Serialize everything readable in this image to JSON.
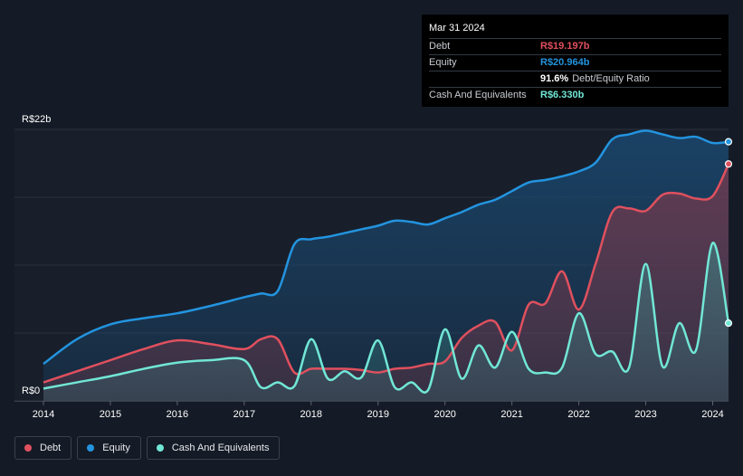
{
  "tooltip": {
    "date": "Mar 31 2024",
    "debt_label": "Debt",
    "debt_value": "R$19.197b",
    "equity_label": "Equity",
    "equity_value": "R$20.964b",
    "ratio_value": "91.6%",
    "ratio_label": "Debt/Equity Ratio",
    "cash_label": "Cash And Equivalents",
    "cash_value": "R$6.330b"
  },
  "legend": {
    "debt": "Debt",
    "equity": "Equity",
    "cash": "Cash And Equivalents"
  },
  "colors": {
    "debt": "#e0505e",
    "equity": "#2394df",
    "cash": "#71e7d6",
    "background": "#151b26"
  },
  "chart_data": {
    "type": "area",
    "title": "",
    "xlabel": "",
    "ylabel": "",
    "ylim": [
      0,
      22
    ],
    "y_axis_labels": [
      "R$22b",
      "R$0"
    ],
    "x_ticks": [
      "2014",
      "2015",
      "2016",
      "2017",
      "2018",
      "2019",
      "2020",
      "2021",
      "2022",
      "2023",
      "2024"
    ],
    "series": [
      {
        "name": "Equity",
        "x": [
          2014.0,
          2014.5,
          2015.0,
          2015.5,
          2016.0,
          2016.5,
          2017.0,
          2017.25,
          2017.5,
          2017.75,
          2018.0,
          2018.25,
          2018.5,
          2018.75,
          2019.0,
          2019.25,
          2019.5,
          2019.75,
          2020.0,
          2020.25,
          2020.5,
          2020.75,
          2021.0,
          2021.25,
          2021.5,
          2021.75,
          2022.0,
          2022.25,
          2022.5,
          2022.75,
          2023.0,
          2023.25,
          2023.5,
          2023.75,
          2024.0,
          2024.25
        ],
        "values": [
          3.0,
          5.0,
          6.2,
          6.7,
          7.1,
          7.7,
          8.4,
          8.7,
          8.9,
          12.7,
          13.1,
          13.3,
          13.6,
          13.9,
          14.2,
          14.6,
          14.5,
          14.3,
          14.8,
          15.3,
          15.9,
          16.3,
          17.0,
          17.7,
          17.9,
          18.2,
          18.6,
          19.3,
          21.2,
          21.6,
          21.9,
          21.6,
          21.3,
          21.4,
          20.9,
          21.0
        ]
      },
      {
        "name": "Debt",
        "x": [
          2014.0,
          2014.5,
          2015.0,
          2015.5,
          2016.0,
          2016.5,
          2017.0,
          2017.25,
          2017.5,
          2017.75,
          2018.0,
          2018.25,
          2018.5,
          2018.75,
          2019.0,
          2019.25,
          2019.5,
          2019.75,
          2020.0,
          2020.25,
          2020.5,
          2020.75,
          2021.0,
          2021.25,
          2021.5,
          2021.75,
          2022.0,
          2022.25,
          2022.5,
          2022.75,
          2023.0,
          2023.25,
          2023.5,
          2023.75,
          2024.0,
          2024.25
        ],
        "values": [
          1.5,
          2.4,
          3.3,
          4.2,
          4.9,
          4.6,
          4.2,
          5.0,
          5.0,
          2.3,
          2.6,
          2.6,
          2.6,
          2.5,
          2.3,
          2.6,
          2.7,
          3.0,
          3.2,
          5.1,
          6.1,
          6.4,
          4.1,
          7.8,
          7.9,
          10.5,
          7.4,
          11.1,
          15.3,
          15.6,
          15.4,
          16.7,
          16.8,
          16.4,
          16.6,
          19.2
        ]
      },
      {
        "name": "Cash And Equivalents",
        "x": [
          2014.0,
          2014.5,
          2015.0,
          2015.5,
          2016.0,
          2016.5,
          2017.0,
          2017.25,
          2017.5,
          2017.75,
          2018.0,
          2018.25,
          2018.5,
          2018.75,
          2019.0,
          2019.25,
          2019.5,
          2019.75,
          2020.0,
          2020.25,
          2020.5,
          2020.75,
          2021.0,
          2021.25,
          2021.5,
          2021.75,
          2022.0,
          2022.25,
          2022.5,
          2022.75,
          2023.0,
          2023.25,
          2023.5,
          2023.75,
          2024.0,
          2024.25
        ],
        "values": [
          1.0,
          1.5,
          2.0,
          2.6,
          3.1,
          3.3,
          3.3,
          1.1,
          1.5,
          1.2,
          5.0,
          1.8,
          2.4,
          1.9,
          4.9,
          1.1,
          1.5,
          0.9,
          5.8,
          1.8,
          4.5,
          2.7,
          5.6,
          2.6,
          2.3,
          2.7,
          7.1,
          3.8,
          4.0,
          2.7,
          11.1,
          2.8,
          6.3,
          4.1,
          12.8,
          6.3
        ]
      }
    ]
  }
}
